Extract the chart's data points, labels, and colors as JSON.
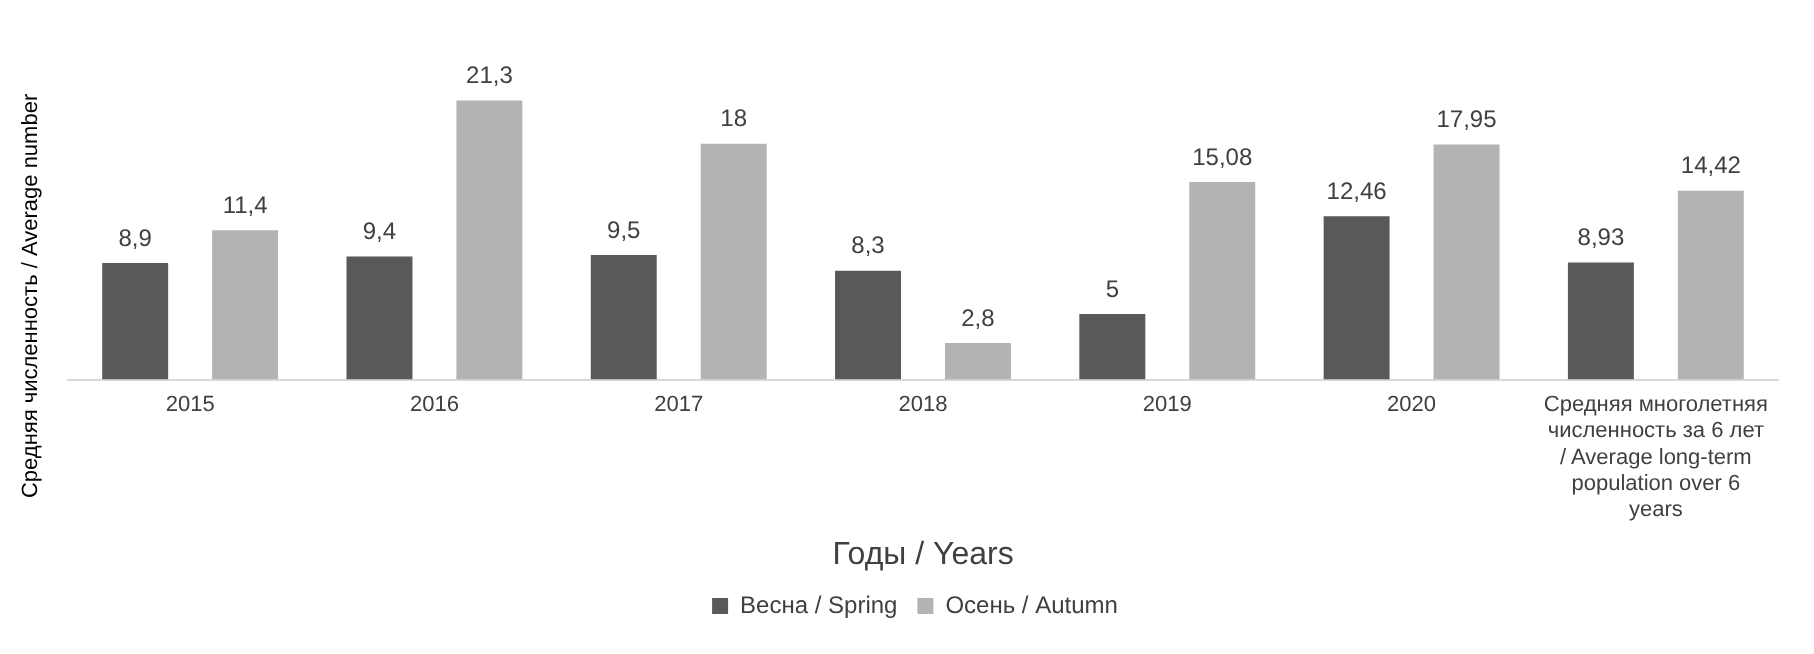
{
  "chart_data": {
    "type": "bar",
    "xlabel": "Годы / Years",
    "ylabel": "Средняя численность / Average number",
    "categories": [
      "2015",
      "2016",
      "2017",
      "2018",
      "2019",
      "2020",
      "Средняя многолетняя численность за 6 лет / Average long-term population over 6 years"
    ],
    "series": [
      {
        "name": "Весна / Spring",
        "color": "#595959",
        "values": [
          8.9,
          9.4,
          9.5,
          8.3,
          5,
          12.46,
          8.93
        ],
        "value_labels": [
          "8,9",
          "9,4",
          "9,5",
          "8,3",
          "5",
          "12,46",
          "8,93"
        ]
      },
      {
        "name": "Осень / Autumn",
        "color": "#b3b3b3",
        "values": [
          11.4,
          21.3,
          18,
          2.8,
          15.08,
          17.95,
          14.42
        ],
        "value_labels": [
          "11,4",
          "21,3",
          "18",
          "2,8",
          "15,08",
          "17,95",
          "14,42"
        ]
      }
    ],
    "grid": false,
    "legend": "bottom"
  }
}
